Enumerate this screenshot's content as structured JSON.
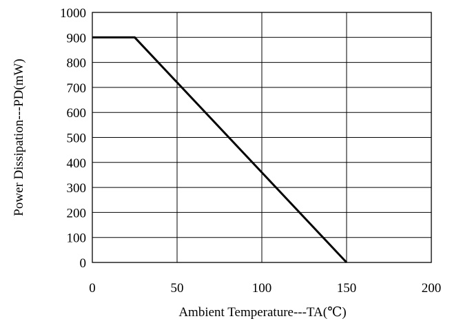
{
  "chart_data": {
    "type": "line",
    "xlabel": "Ambient Temperature---TA(℃)",
    "ylabel": "Power Dissipation---PD(mW)",
    "xlim": [
      0,
      200
    ],
    "ylim": [
      0,
      1000
    ],
    "x_ticks": [
      0,
      50,
      100,
      150,
      200
    ],
    "y_ticks": [
      0,
      100,
      200,
      300,
      400,
      500,
      600,
      700,
      800,
      900,
      1000
    ],
    "grid": true,
    "series": [
      {
        "x": [
          0,
          25,
          150
        ],
        "y": [
          900,
          900,
          0
        ]
      }
    ]
  }
}
